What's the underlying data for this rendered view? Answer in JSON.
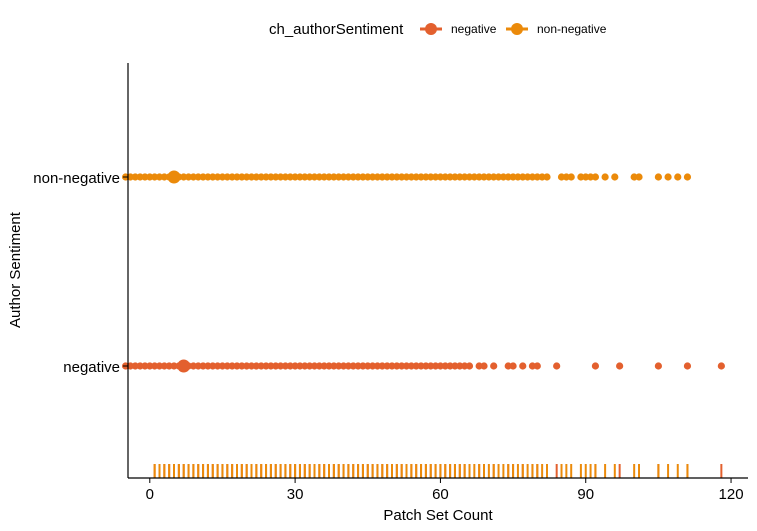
{
  "chart_data": {
    "type": "scatter",
    "title": "",
    "xlabel": "Patch Set Count",
    "ylabel": "Author Sentiment",
    "xlim": [
      -4.5,
      123.5
    ],
    "x_ticks": [
      0,
      30,
      60,
      90,
      120
    ],
    "categories": [
      "negative",
      "non-negative"
    ],
    "legend": {
      "title": "ch_authorSentiment",
      "placement": "top",
      "entries": [
        "negative",
        "non-negative"
      ]
    },
    "colors": {
      "negative": "#E3602E",
      "non-negative": "#EB8A0A",
      "axis": "#000000"
    },
    "grid": false,
    "rug": true,
    "series": [
      {
        "name": "negative",
        "mean": 7,
        "x": [
          -5,
          -4,
          -3,
          -2,
          -1,
          0,
          1,
          2,
          3,
          4,
          5,
          6,
          7,
          8,
          9,
          10,
          11,
          12,
          13,
          14,
          15,
          16,
          17,
          18,
          19,
          20,
          21,
          22,
          23,
          24,
          25,
          26,
          27,
          28,
          29,
          30,
          31,
          32,
          33,
          34,
          35,
          36,
          37,
          38,
          39,
          40,
          41,
          42,
          43,
          44,
          45,
          46,
          47,
          48,
          49,
          50,
          51,
          52,
          53,
          54,
          55,
          56,
          57,
          58,
          59,
          60,
          61,
          62,
          63,
          64,
          65,
          66,
          68,
          69,
          71,
          74,
          75,
          77,
          79,
          80,
          84,
          92,
          97,
          105,
          111,
          118
        ]
      },
      {
        "name": "non-negative",
        "mean": 5,
        "x": [
          -5,
          -4,
          -3,
          -2,
          -1,
          0,
          1,
          2,
          3,
          4,
          5,
          6,
          7,
          8,
          9,
          10,
          11,
          12,
          13,
          14,
          15,
          16,
          17,
          18,
          19,
          20,
          21,
          22,
          23,
          24,
          25,
          26,
          27,
          28,
          29,
          30,
          31,
          32,
          33,
          34,
          35,
          36,
          37,
          38,
          39,
          40,
          41,
          42,
          43,
          44,
          45,
          46,
          47,
          48,
          49,
          50,
          51,
          52,
          53,
          54,
          55,
          56,
          57,
          58,
          59,
          60,
          61,
          62,
          63,
          64,
          65,
          66,
          67,
          68,
          69,
          70,
          71,
          72,
          73,
          74,
          75,
          76,
          77,
          78,
          79,
          80,
          81,
          82,
          85,
          86,
          87,
          89,
          90,
          91,
          92,
          94,
          96,
          100,
          101,
          105,
          107,
          109,
          111
        ]
      }
    ]
  }
}
